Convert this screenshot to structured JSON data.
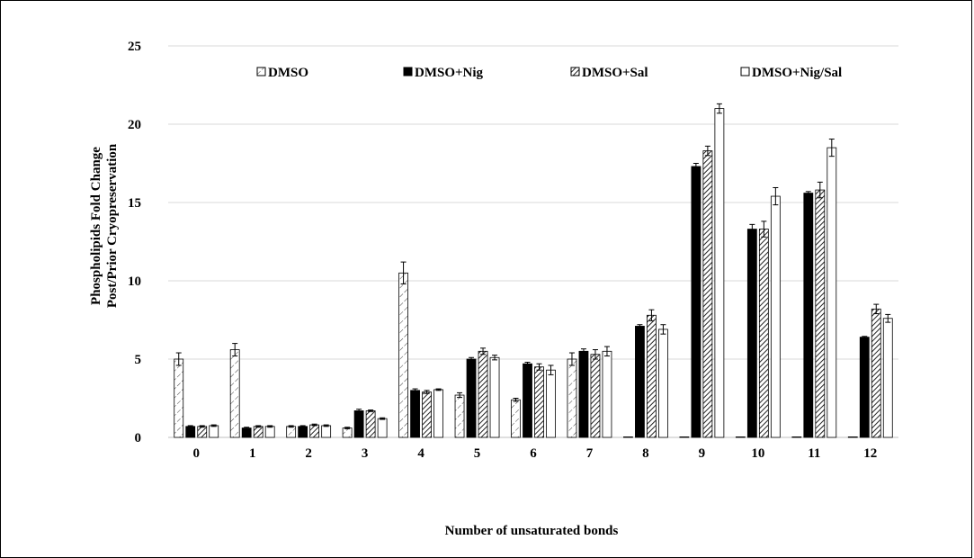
{
  "chart_data": {
    "type": "bar",
    "title": "",
    "xlabel": "Number of unsaturated bonds",
    "ylabel_lines": [
      "Phospholipids Fold Change",
      "Post/Prior Cryopreservation"
    ],
    "ylim": [
      0,
      25
    ],
    "yticks": [
      0,
      5,
      10,
      15,
      20,
      25
    ],
    "grid": true,
    "legend_position": "top",
    "categories": [
      "0",
      "1",
      "2",
      "3",
      "4",
      "5",
      "6",
      "7",
      "8",
      "9",
      "10",
      "11",
      "12"
    ],
    "series": [
      {
        "name": "DMSO",
        "pattern": "dmso-light-diagonal",
        "values": [
          5.0,
          5.6,
          0.7,
          0.6,
          10.5,
          2.7,
          2.4,
          5.0,
          0,
          0,
          0,
          0,
          0
        ],
        "errors": [
          0.4,
          0.4,
          0.05,
          0.05,
          0.7,
          0.15,
          0.1,
          0.4,
          0,
          0,
          0,
          0,
          0
        ]
      },
      {
        "name": "DMSO+Nig",
        "pattern": "solid-black",
        "values": [
          0.7,
          0.6,
          0.7,
          1.7,
          3.0,
          5.0,
          4.7,
          5.5,
          7.1,
          17.3,
          13.3,
          15.6,
          6.4
        ],
        "errors": [
          0.05,
          0.05,
          0.05,
          0.1,
          0.1,
          0.1,
          0.1,
          0.15,
          0.1,
          0.2,
          0.3,
          0.1,
          0.05
        ]
      },
      {
        "name": "DMSO+Sal",
        "pattern": "dense-diagonal",
        "values": [
          0.7,
          0.7,
          0.8,
          1.7,
          2.9,
          5.5,
          4.5,
          5.3,
          7.8,
          18.3,
          13.3,
          15.8,
          8.2
        ],
        "errors": [
          0.05,
          0.05,
          0.05,
          0.05,
          0.1,
          0.2,
          0.2,
          0.3,
          0.35,
          0.3,
          0.5,
          0.5,
          0.3
        ]
      },
      {
        "name": "DMSO+Nig/Sal",
        "pattern": "white",
        "values": [
          0.75,
          0.7,
          0.75,
          1.2,
          3.05,
          5.1,
          4.3,
          5.5,
          6.9,
          21.0,
          15.4,
          18.5,
          7.6
        ],
        "errors": [
          0.05,
          0.05,
          0.05,
          0.05,
          0.05,
          0.15,
          0.3,
          0.3,
          0.3,
          0.3,
          0.55,
          0.55,
          0.25
        ]
      }
    ]
  }
}
